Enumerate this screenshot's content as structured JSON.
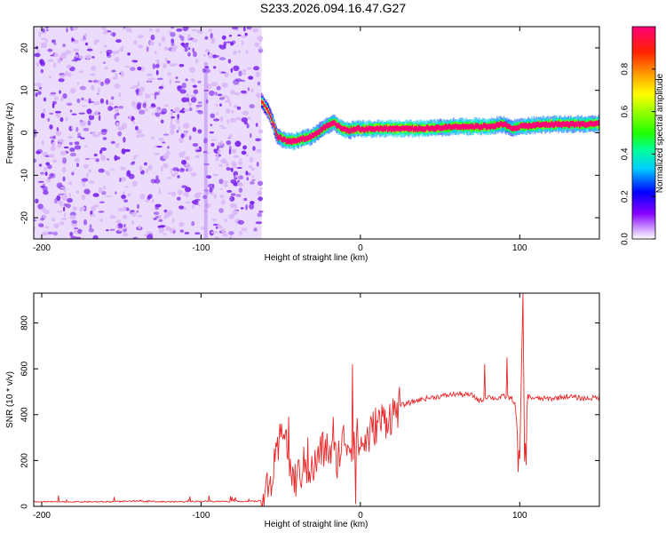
{
  "title": "S233.2026.094.16.47.G27",
  "colors": {
    "trace": "#e8282a",
    "axis": "#000000",
    "scatter": "#7a22ee",
    "scatter_light": "#d9b8f7"
  },
  "chart_data": [
    {
      "type": "heatmap",
      "title": "S233.2026.094.16.47.G27",
      "xlabel": "Height of straight line (km)",
      "ylabel": "Frequency (Hz)",
      "xlim": [
        -205,
        150
      ],
      "ylim": [
        -25,
        25
      ],
      "x_ticks": [
        -200,
        -100,
        0,
        100
      ],
      "x_tick_labels": [
        "-200",
        "-100",
        "0",
        "100"
      ],
      "y_ticks": [
        -20,
        -10,
        0,
        10,
        20
      ],
      "y_tick_labels": [
        "-20",
        "-10",
        "0",
        "10",
        "20"
      ],
      "noise_region_x": [
        -205,
        -62
      ],
      "ridge": {
        "x": [
          -62,
          -57,
          -52,
          -47,
          -42,
          -37,
          -32,
          -27,
          -22,
          -17,
          -12,
          -7,
          -2,
          3,
          10,
          20,
          30,
          40,
          50,
          60,
          70,
          80,
          90,
          95,
          100,
          110,
          120,
          130,
          140,
          150
        ],
        "freq": [
          7.5,
          4.5,
          -1.0,
          -1.8,
          -2.0,
          -1.5,
          -1.0,
          0.0,
          1.5,
          2.5,
          1.0,
          0.5,
          1.0,
          0.8,
          1.0,
          1.0,
          1.0,
          1.0,
          1.2,
          1.5,
          1.5,
          1.5,
          2.0,
          1.0,
          1.5,
          1.8,
          2.0,
          2.0,
          2.0,
          2.2
        ],
        "amplitude": [
          0.25,
          0.3,
          0.55,
          0.8,
          0.9,
          0.85,
          0.8,
          0.7,
          0.7,
          0.75,
          0.85,
          0.8,
          0.85,
          0.85,
          0.9,
          0.95,
          0.95,
          0.9,
          0.8,
          0.85,
          0.9,
          0.85,
          0.7,
          0.6,
          0.75,
          0.8,
          0.85,
          0.8,
          0.8,
          0.8
        ]
      },
      "colorbar": {
        "label": "Normalized spectral amplitude",
        "range": [
          0,
          1
        ],
        "ticks": [
          0.0,
          0.2,
          0.4,
          0.6,
          0.8
        ],
        "tick_labels": [
          "0.0",
          "0.2",
          "0.4",
          "0.6",
          "0.8"
        ]
      }
    },
    {
      "type": "line",
      "xlabel": "Height of straight line (km)",
      "ylabel": "SNR (10 * v/v)",
      "xlim": [
        -205,
        150
      ],
      "ylim": [
        0,
        930
      ],
      "x_ticks": [
        -200,
        -100,
        0,
        100
      ],
      "x_tick_labels": [
        "-200",
        "-100",
        "0",
        "100"
      ],
      "y_ticks": [
        0,
        200,
        400,
        600,
        800
      ],
      "y_tick_labels": [
        "0",
        "200",
        "400",
        "600",
        "800"
      ],
      "series": [
        {
          "name": "SNR",
          "x": [
            -205,
            -180,
            -160,
            -140,
            -120,
            -100,
            -80,
            -66,
            -62,
            -57,
            -52,
            -48,
            -45,
            -42,
            -40,
            -35,
            -30,
            -25,
            -20,
            -15,
            -10,
            -6,
            -3,
            0,
            5,
            10,
            15,
            20,
            25,
            30,
            40,
            50,
            60,
            70,
            75,
            80,
            85,
            90,
            95,
            97,
            100,
            102,
            103,
            105,
            110,
            120,
            130,
            140,
            150
          ],
          "values": [
            20,
            20,
            20,
            22,
            20,
            22,
            22,
            22,
            25,
            80,
            220,
            380,
            200,
            110,
            120,
            180,
            150,
            240,
            250,
            200,
            300,
            260,
            320,
            260,
            300,
            360,
            380,
            400,
            440,
            450,
            470,
            480,
            490,
            485,
            460,
            480,
            470,
            480,
            470,
            450,
            200,
            930,
            200,
            480,
            470,
            470,
            480,
            470,
            475
          ],
          "spikes": [
            {
              "x": -45,
              "v": 390
            },
            {
              "x": -33,
              "v": 300
            },
            {
              "x": -17,
              "v": 390
            },
            {
              "x": -5,
              "v": 620
            },
            {
              "x": -3,
              "v": 10
            },
            {
              "x": 78,
              "v": 620
            },
            {
              "x": 92,
              "v": 650
            },
            {
              "x": 99,
              "v": 150
            },
            {
              "x": 102,
              "v": 930
            },
            {
              "x": 104,
              "v": 180
            }
          ]
        }
      ]
    }
  ]
}
